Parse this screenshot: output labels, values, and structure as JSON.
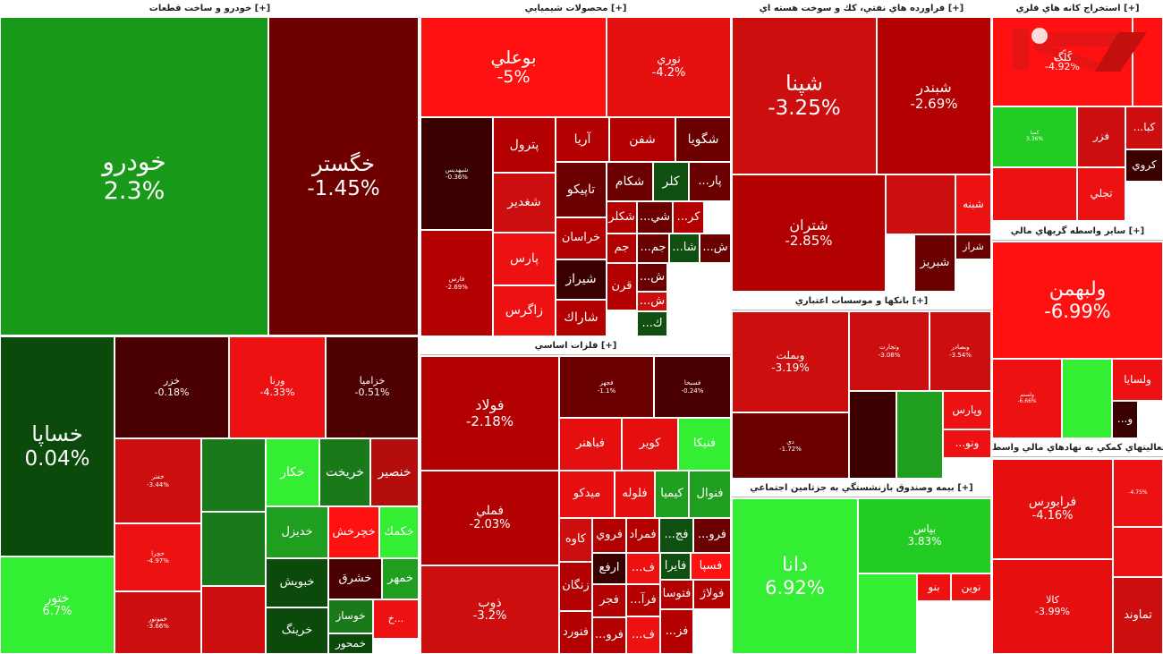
{
  "chart_data": {
    "type": "treemap",
    "colors": {
      "strong_red": "#ff1111",
      "red": "#e50f0f",
      "dark_red": "#b30000",
      "maroon": "#6b0000",
      "very_dark": "#3a0000",
      "strong_green": "#2fe02f",
      "green": "#1f9e1f",
      "dark_green": "#0f4f0f"
    },
    "sectors": [
      {
        "name": "خودرو و ساخت قطعات [+]",
        "cells": [
          {
            "symbol": "خودرو",
            "change": "2.3%",
            "color": "#199919"
          },
          {
            "symbol": "خگستر",
            "change": "-1.45%",
            "color": "#6e0000"
          },
          {
            "symbol": "خساپا",
            "change": "0.04%",
            "color": "#0b4a0b"
          },
          {
            "symbol": "ختور",
            "change": "6.7%",
            "color": "#33ee33"
          },
          {
            "symbol": "خزر",
            "change": "-0.18%",
            "color": "#4a0000"
          },
          {
            "symbol": "ورنا",
            "change": "-4.33%",
            "color": "#ee1111"
          },
          {
            "symbol": "خزامیا",
            "change": "-0.51%",
            "color": "#4f0000"
          },
          {
            "symbol": "خفنر",
            "change": "-3.44%",
            "color": "#cc0e0e"
          },
          {
            "symbol": "",
            "change": "",
            "color": "#1a7a1a"
          },
          {
            "symbol": "خكار",
            "change": "",
            "color": "#33ee33"
          },
          {
            "symbol": "خريخت",
            "change": "",
            "color": "#1a7a1a"
          },
          {
            "symbol": "خنصير",
            "change": "",
            "color": "#b50c0c"
          },
          {
            "symbol": "خچرا",
            "change": "-4.97%",
            "color": "#ee1111"
          },
          {
            "symbol": "",
            "change": "",
            "color": "#1a7a1a"
          },
          {
            "symbol": "خديزل",
            "change": "",
            "color": "#1f9e1f"
          },
          {
            "symbol": "خچرخش",
            "change": "",
            "color": "#ff1111"
          },
          {
            "symbol": "خكمك",
            "change": "",
            "color": "#33ee33"
          },
          {
            "symbol": "خموتور",
            "change": "-3.66%",
            "color": "#cc0e0e"
          },
          {
            "symbol": "",
            "change": "",
            "color": "#cc0e0e"
          },
          {
            "symbol": "خبويش",
            "change": "",
            "color": "#0b4a0b"
          },
          {
            "symbol": "خشرق",
            "change": "",
            "color": "#4a0000"
          },
          {
            "symbol": "خمهر",
            "change": "",
            "color": "#1f9e1f"
          },
          {
            "symbol": "خرينگ",
            "change": "",
            "color": "#0b4a0b"
          },
          {
            "symbol": "خوساز",
            "change": "",
            "color": "#1a7a1a"
          },
          {
            "symbol": "خمحور",
            "change": "",
            "color": "#0b4a0b"
          },
          {
            "symbol": "خ...",
            "change": "",
            "color": "#ee1111"
          }
        ]
      },
      {
        "name": "محصولات شيميايي [+]",
        "cells": [
          {
            "symbol": "بوعلي",
            "change": "-5%",
            "color": "#ff1111"
          },
          {
            "symbol": "نوري",
            "change": "-4.2%",
            "color": "#e51010"
          },
          {
            "symbol": "شبهدیس",
            "change": "-0.36%",
            "color": "#3a0000"
          },
          {
            "symbol": "پترول",
            "change": "",
            "color": "#b30000"
          },
          {
            "symbol": "آريا",
            "change": "",
            "color": "#b30000"
          },
          {
            "symbol": "شفن",
            "change": "",
            "color": "#b30000"
          },
          {
            "symbol": "شگويا",
            "change": "",
            "color": "#6b0000"
          },
          {
            "symbol": "تاپيكو",
            "change": "",
            "color": "#6b0000"
          },
          {
            "symbol": "شكام",
            "change": "",
            "color": "#6b0000"
          },
          {
            "symbol": "كلر",
            "change": "",
            "color": "#0f4f0f"
          },
          {
            "symbol": "...پار",
            "change": "",
            "color": "#6b0000"
          },
          {
            "symbol": "شغدير",
            "change": "",
            "color": "#cc0e0e"
          },
          {
            "symbol": "شكلر",
            "change": "",
            "color": "#b30000"
          },
          {
            "symbol": "...شي",
            "change": "",
            "color": "#6b0000"
          },
          {
            "symbol": "...كر",
            "change": "",
            "color": "#b30000"
          },
          {
            "symbol": "خراسان",
            "change": "",
            "color": "#b30000"
          },
          {
            "symbol": "جم",
            "change": "",
            "color": "#b30000"
          },
          {
            "symbol": "...جم",
            "change": "",
            "color": "#6b0000"
          },
          {
            "symbol": "...شا",
            "change": "",
            "color": "#0f4f0f"
          },
          {
            "symbol": "...ش",
            "change": "",
            "color": "#6b0000"
          },
          {
            "symbol": "فارس",
            "change": "-2.69%",
            "color": "#b30000"
          },
          {
            "symbol": "پارس",
            "change": "",
            "color": "#ee1111"
          },
          {
            "symbol": "شيراز",
            "change": "",
            "color": "#3a0000"
          },
          {
            "symbol": "قرن",
            "change": "",
            "color": "#b30000"
          },
          {
            "symbol": "...ش",
            "change": "",
            "color": "#6b0000"
          },
          {
            "symbol": "زاگرس",
            "change": "",
            "color": "#ee1111"
          },
          {
            "symbol": "شاراك",
            "change": "",
            "color": "#b30000"
          },
          {
            "symbol": "...ش",
            "change": "",
            "color": "#cc0e0e"
          },
          {
            "symbol": "...ك",
            "change": "",
            "color": "#0f4f0f"
          }
        ]
      },
      {
        "name": "فلزات اساسي [+]",
        "cells": [
          {
            "symbol": "فولاد",
            "change": "-2.18%",
            "color": "#b30000"
          },
          {
            "symbol": "فجهز",
            "change": "-1.1%",
            "color": "#6b0000"
          },
          {
            "symbol": "فسبحا",
            "change": "-0.24%",
            "color": "#4a0000"
          },
          {
            "symbol": "فباهنر",
            "change": "",
            "color": "#e50f0f"
          },
          {
            "symbol": "كوير",
            "change": "",
            "color": "#e50f0f"
          },
          {
            "symbol": "فنيكا",
            "change": "",
            "color": "#33ee33"
          },
          {
            "symbol": "فملي",
            "change": "-2.03%",
            "color": "#b30000"
          },
          {
            "symbol": "ميدكو",
            "change": "",
            "color": "#e50f0f"
          },
          {
            "symbol": "فلوله",
            "change": "",
            "color": "#e50f0f"
          },
          {
            "symbol": "كيميا",
            "change": "",
            "color": "#1f9e1f"
          },
          {
            "symbol": "فنوال",
            "change": "",
            "color": "#1f9e1f"
          },
          {
            "symbol": "ذوب",
            "change": "-3.2%",
            "color": "#cc0e0e"
          },
          {
            "symbol": "كاوه",
            "change": "",
            "color": "#cc0e0e"
          },
          {
            "symbol": "فروي",
            "change": "",
            "color": "#b30000"
          },
          {
            "symbol": "فمراد",
            "change": "",
            "color": "#b30000"
          },
          {
            "symbol": "...فج",
            "change": "",
            "color": "#0f4f0f"
          },
          {
            "symbol": "...فرو",
            "change": "",
            "color": "#6b0000"
          },
          {
            "symbol": "ارفع",
            "change": "",
            "color": "#3a0000"
          },
          {
            "symbol": "...ف",
            "change": "",
            "color": "#ee1111"
          },
          {
            "symbol": "فايرا",
            "change": "",
            "color": "#0f4f0f"
          },
          {
            "symbol": "فسپا",
            "change": "",
            "color": "#ff1111"
          },
          {
            "symbol": "زنگان",
            "change": "",
            "color": "#b30000"
          },
          {
            "symbol": "فجر",
            "change": "",
            "color": "#b30000"
          },
          {
            "symbol": "...فرآ",
            "change": "",
            "color": "#b30000"
          },
          {
            "symbol": "فتوسا",
            "change": "",
            "color": "#b30000"
          },
          {
            "symbol": "فولاژ",
            "change": "",
            "color": "#b30000"
          },
          {
            "symbol": "فنورد",
            "change": "",
            "color": "#b30000"
          },
          {
            "symbol": "...فرو",
            "change": "",
            "color": "#b30000"
          },
          {
            "symbol": "...ف",
            "change": "",
            "color": "#ee1111"
          },
          {
            "symbol": "...فز",
            "change": "",
            "color": "#b30000"
          }
        ]
      },
      {
        "name": "فراورده هاي نفتي، كك و سوخت هسته اي [+]",
        "cells": [
          {
            "symbol": "شپنا",
            "change": "-3.25%",
            "color": "#cc0e0e"
          },
          {
            "symbol": "شبندر",
            "change": "-2.69%",
            "color": "#b30000"
          },
          {
            "symbol": "شتران",
            "change": "-2.85%",
            "color": "#b30000"
          },
          {
            "symbol": "",
            "change": "",
            "color": "#cc0e0e"
          },
          {
            "symbol": "شبنه",
            "change": "",
            "color": "#ee1111"
          },
          {
            "symbol": "شبريز",
            "change": "",
            "color": "#6b0000"
          },
          {
            "symbol": "شراز",
            "change": "",
            "color": "#6b0000"
          }
        ]
      },
      {
        "name": "بانكها و موسسات اعتباري [+]",
        "cells": [
          {
            "symbol": "وبملت",
            "change": "-3.19%",
            "color": "#cc0e0e"
          },
          {
            "symbol": "وتجارت",
            "change": "-3.08%",
            "color": "#cc0e0e"
          },
          {
            "symbol": "وبصادر",
            "change": "-3.54%",
            "color": "#cc0e0e"
          },
          {
            "symbol": "دي",
            "change": "-1.72%",
            "color": "#6b0000"
          },
          {
            "symbol": "",
            "change": "",
            "color": "#3a0000"
          },
          {
            "symbol": "",
            "change": "",
            "color": "#1f9e1f"
          },
          {
            "symbol": "وپارس",
            "change": "",
            "color": "#ee1111"
          },
          {
            "symbol": "...ونو",
            "change": "",
            "color": "#ee1111"
          }
        ]
      },
      {
        "name": "بيمه وصندوق بازنشستگي به جزتامين اجتماعي [+]",
        "cells": [
          {
            "symbol": "دانا",
            "change": "6.92%",
            "color": "#33ee33"
          },
          {
            "symbol": "بپاس",
            "change": "3.83%",
            "color": "#22cc22"
          },
          {
            "symbol": "",
            "change": "",
            "color": "#33ee33"
          },
          {
            "symbol": "بنو",
            "change": "",
            "color": "#ee1111"
          },
          {
            "symbol": "نوين",
            "change": "",
            "color": "#ee1111"
          }
        ]
      },
      {
        "name": "استخراج كانه هاي فلزي [+]",
        "cells": [
          {
            "symbol": "كگل",
            "change": "-4.92%",
            "color": "#ff1111"
          },
          {
            "symbol": "",
            "change": "",
            "color": "#ff1111"
          },
          {
            "symbol": "كمنا",
            "change": "3.36%",
            "color": "#22cc22"
          },
          {
            "symbol": "فزر",
            "change": "",
            "color": "#cc0e0e"
          },
          {
            "symbol": "...كبا",
            "change": "",
            "color": "#cc0e0e"
          },
          {
            "symbol": "كروي",
            "change": "",
            "color": "#3a0000"
          },
          {
            "symbol": "",
            "change": "",
            "color": "#ee1111"
          },
          {
            "symbol": "تجلي",
            "change": "",
            "color": "#ee1111"
          }
        ]
      },
      {
        "name": "ساير واسطه گريهاي مالي [+]",
        "cells": [
          {
            "symbol": "ولبهمن",
            "change": "-6.99%",
            "color": "#ff1111"
          },
          {
            "symbol": "ولصنم",
            "change": "-6.66%",
            "color": "#ee1111"
          },
          {
            "symbol": "",
            "change": "",
            "color": "#33ee33"
          },
          {
            "symbol": "ولسايا",
            "change": "",
            "color": "#ee1111"
          },
          {
            "symbol": "...و",
            "change": "",
            "color": "#3a0000"
          }
        ]
      },
      {
        "name": "فعاليتهاي كمكي به نهادهاي مالي واسط [+]",
        "cells": [
          {
            "symbol": "فرابورس",
            "change": "-4.16%",
            "color": "#e50f0f"
          },
          {
            "symbol": "",
            "change": "-4.75%",
            "color": "#ee1111"
          },
          {
            "symbol": "",
            "change": "",
            "color": "#ee1111"
          },
          {
            "symbol": "كالا",
            "change": "-3.99%",
            "color": "#e50f0f"
          },
          {
            "symbol": "تماوند",
            "change": "",
            "color": "#cc0e0e"
          }
        ]
      }
    ],
    "logo_text": "كلگ"
  }
}
